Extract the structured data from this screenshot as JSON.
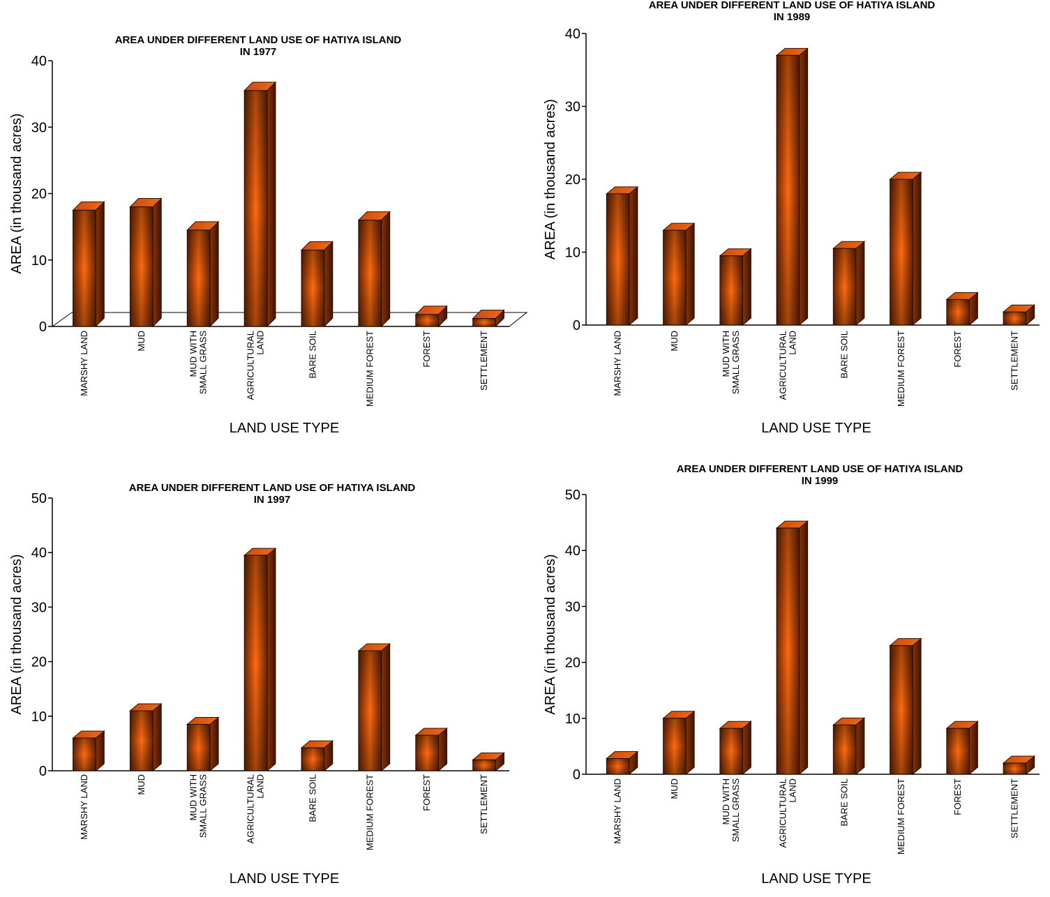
{
  "colors": {
    "bar_front": "#e8580a",
    "bar_edge": "#5a1d02",
    "bar_side": "#6e2a05",
    "bar_top": "#d9560c",
    "axis": "#000000"
  },
  "categories": [
    [
      "MARSHY LAND"
    ],
    [
      "MUD"
    ],
    [
      "MUD WITH",
      "SMALL GRASS"
    ],
    [
      "AGRICULTURAL",
      "LAND"
    ],
    [
      "BARE SOIL"
    ],
    [
      "MEDIUM FOREST"
    ],
    [
      "FOREST"
    ],
    [
      "SETTLEMENT"
    ]
  ],
  "chart_data": [
    {
      "type": "bar",
      "title": [
        "AREA UNDER DIFFERENT LAND USE OF HATIYA ISLAND",
        "IN 1977"
      ],
      "xlabel": "LAND USE TYPE",
      "ylabel": "AREA (in thousand acres)",
      "categories": [
        "MARSHY LAND",
        "MUD",
        "MUD WITH SMALL GRASS",
        "AGRICULTURAL LAND",
        "BARE SOIL",
        "MEDIUM FOREST",
        "FOREST",
        "SETTLEMENT"
      ],
      "values": [
        17.5,
        18,
        14.5,
        35.5,
        11.5,
        16,
        1.8,
        1.2
      ],
      "ylim": [
        0,
        40
      ],
      "yticks": [
        0,
        10,
        20,
        30,
        40
      ],
      "floor": true
    },
    {
      "type": "bar",
      "title": [
        "AREA UNDER DIFFERENT LAND USE OF HATIYA ISLAND",
        "IN 1989"
      ],
      "xlabel": "LAND USE TYPE",
      "ylabel": "AREA (in thousand acres)",
      "categories": [
        "MARSHY LAND",
        "MUD",
        "MUD WITH SMALL GRASS",
        "AGRICULTURAL LAND",
        "BARE SOIL",
        "MEDIUM FOREST",
        "FOREST",
        "SETTLEMENT"
      ],
      "values": [
        18,
        13,
        9.5,
        37,
        10.5,
        20,
        3.5,
        1.8
      ],
      "ylim": [
        0,
        40
      ],
      "yticks": [
        0,
        10,
        20,
        30,
        40
      ],
      "floor": false
    },
    {
      "type": "bar",
      "title": [
        "AREA UNDER DIFFERENT LAND USE OF HATIYA ISLAND",
        "IN 1997"
      ],
      "xlabel": "LAND USE TYPE",
      "ylabel": "AREA (in thousand acres)",
      "categories": [
        "MARSHY LAND",
        "MUD",
        "MUD WITH SMALL GRASS",
        "AGRICULTURAL LAND",
        "BARE SOIL",
        "MEDIUM FOREST",
        "FOREST",
        "SETTLEMENT"
      ],
      "values": [
        6,
        11,
        8.5,
        39.5,
        4.2,
        22,
        6.5,
        2
      ],
      "ylim": [
        0,
        50
      ],
      "yticks": [
        0,
        10,
        20,
        30,
        40,
        50
      ],
      "floor": false
    },
    {
      "type": "bar",
      "title": [
        "AREA UNDER DIFFERENT LAND USE OF HATIYA ISLAND",
        "IN 1999"
      ],
      "xlabel": "LAND USE TYPE",
      "ylabel": "AREA (in thousand acres)",
      "categories": [
        "MARSHY LAND",
        "MUD",
        "MUD WITH SMALL GRASS",
        "AGRICULTURAL LAND",
        "BARE SOIL",
        "MEDIUM FOREST",
        "FOREST",
        "SETTLEMENT"
      ],
      "values": [
        2.8,
        10,
        8.2,
        44,
        8.8,
        23,
        8.2,
        2
      ],
      "ylim": [
        0,
        50
      ],
      "yticks": [
        0,
        10,
        20,
        30,
        40,
        50
      ],
      "floor": false
    }
  ]
}
